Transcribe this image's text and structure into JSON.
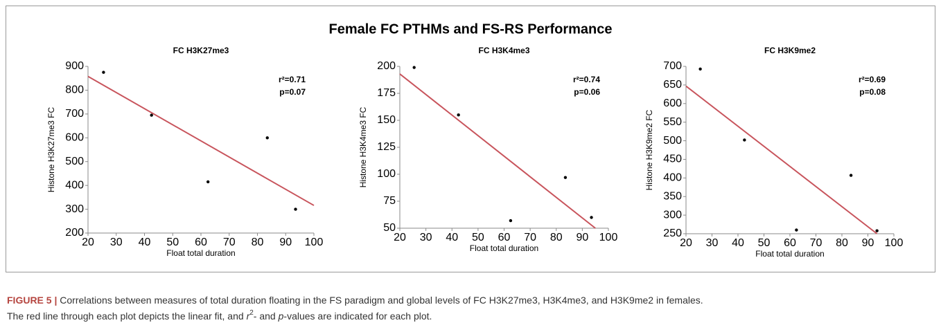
{
  "figure_title": "Female FC PTHMs and FS-RS Performance",
  "chart_data": [
    {
      "type": "scatter",
      "title": "FC H3K27me3",
      "x_label": "Float total duration",
      "y_label": "Histone H3K27me3 FC",
      "x": [
        25.5,
        42.5,
        62.5,
        83.5,
        93.5
      ],
      "y": [
        875,
        695,
        415,
        600,
        300
      ],
      "color": "#000000",
      "fit": {
        "x": [
          20,
          100
        ],
        "y": [
          858,
          316
        ],
        "color": "#c8545c"
      },
      "annotations": [
        "r²=0.71",
        "p=0.07"
      ],
      "xlim": [
        20,
        100
      ],
      "xticks": [
        20,
        30,
        40,
        50,
        60,
        70,
        80,
        90,
        100
      ],
      "ylim": [
        200,
        900
      ],
      "yticks": [
        200,
        300,
        400,
        500,
        600,
        700,
        800,
        900
      ]
    },
    {
      "type": "scatter",
      "title": "FC H3K4me3",
      "x_label": "Float total duration",
      "y_label": "Histone H3K4me3 FC",
      "x": [
        25.5,
        42.5,
        62.5,
        83.5,
        93.5
      ],
      "y": [
        199,
        155,
        57,
        97,
        60
      ],
      "color": "#000000",
      "fit": {
        "x": [
          20,
          95
        ],
        "y": [
          193,
          50
        ],
        "color": "#c8545c"
      },
      "annotations": [
        "r²=0.74",
        "p=0.06"
      ],
      "xlim": [
        20,
        100
      ],
      "xticks": [
        20,
        30,
        40,
        50,
        60,
        70,
        80,
        90,
        100
      ],
      "ylim": [
        50,
        200
      ],
      "yticks": [
        50,
        75,
        100,
        125,
        150,
        175,
        200
      ]
    },
    {
      "type": "scatter",
      "title": "FC H3K9me2",
      "x_label": "Float total duration",
      "y_label": "Histone H3K9me2 FC",
      "x": [
        25.5,
        42.5,
        62.5,
        83.5,
        93.5
      ],
      "y": [
        693,
        502,
        260,
        407,
        258
      ],
      "color": "#000000",
      "fit": {
        "x": [
          20,
          93.5
        ],
        "y": [
          647,
          250
        ],
        "color": "#c8545c"
      },
      "annotations": [
        "r²=0.69",
        "p=0.08"
      ],
      "xlim": [
        20,
        100
      ],
      "xticks": [
        20,
        30,
        40,
        50,
        60,
        70,
        80,
        90,
        100
      ],
      "ylim": [
        250,
        700
      ],
      "yticks": [
        250,
        300,
        350,
        400,
        450,
        500,
        550,
        600,
        650,
        700
      ]
    }
  ],
  "caption": {
    "label": "FIGURE 5 |",
    "line1": "Correlations between measures of total duration floating in the FS paradigm and global levels of FC H3K27me3, H3K4me3, and H3K9me2 in females.",
    "line2": [
      "The red line through each plot depicts the linear fit, and ",
      "r",
      "2",
      "- and ",
      "p",
      "-values are indicated for each plot."
    ]
  }
}
